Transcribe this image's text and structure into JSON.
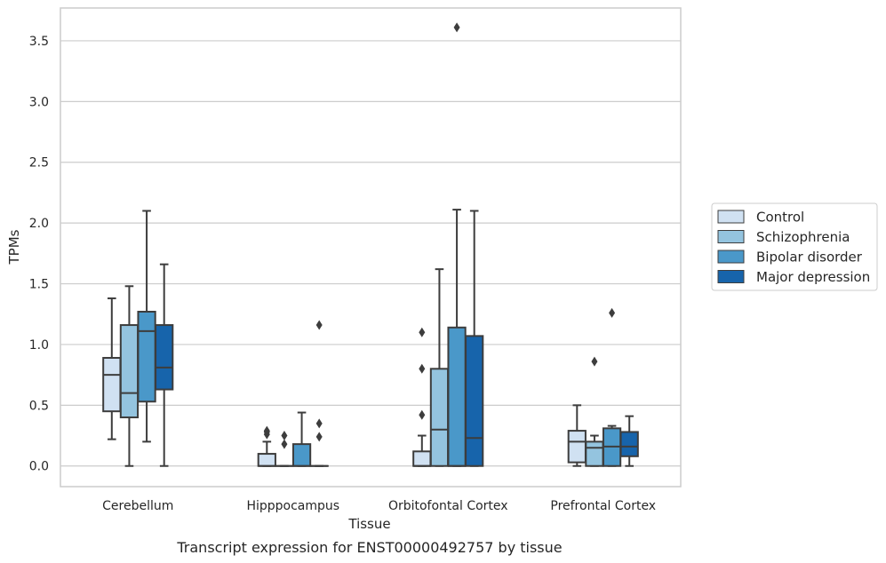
{
  "chart_data": {
    "type": "box",
    "xlabel": "Tissue",
    "ylabel": "TPMs",
    "caption": "Transcript expression for ENST00000492757 by tissue",
    "ylim": [
      -0.17,
      3.77
    ],
    "yticks": [
      "0.0",
      "0.5",
      "1.0",
      "1.5",
      "2.0",
      "2.5",
      "3.0",
      "3.5"
    ],
    "ytick_values": [
      0.0,
      0.5,
      1.0,
      1.5,
      2.0,
      2.5,
      3.0,
      3.5
    ],
    "grid": true,
    "legend_position": "right",
    "categories": [
      "Cerebellum",
      "Hipppocampus",
      "Orbitofontal Cortex",
      "Prefrontal Cortex"
    ],
    "series": [
      {
        "name": "Control",
        "color": "#d0e1f2",
        "boxes": [
          {
            "whislo": 0.22,
            "q1": 0.45,
            "med": 0.75,
            "q3": 0.89,
            "whishi": 1.38,
            "fliers": []
          },
          {
            "whislo": 0.0,
            "q1": 0.0,
            "med": 0.0,
            "q3": 0.1,
            "whishi": 0.2,
            "fliers": [
              0.26,
              0.28,
              0.29
            ]
          },
          {
            "whislo": 0.0,
            "q1": 0.0,
            "med": 0.0,
            "q3": 0.12,
            "whishi": 0.25,
            "fliers": [
              0.42,
              0.8,
              1.1
            ]
          },
          {
            "whislo": 0.0,
            "q1": 0.03,
            "med": 0.2,
            "q3": 0.29,
            "whishi": 0.5,
            "fliers": []
          }
        ]
      },
      {
        "name": "Schizophrenia",
        "color": "#94c4df",
        "boxes": [
          {
            "whislo": 0.0,
            "q1": 0.4,
            "med": 0.6,
            "q3": 1.16,
            "whishi": 1.48,
            "fliers": []
          },
          {
            "whislo": 0.0,
            "q1": 0.0,
            "med": 0.0,
            "q3": 0.0,
            "whishi": 0.0,
            "fliers": [
              0.18,
              0.25
            ]
          },
          {
            "whislo": 0.0,
            "q1": 0.0,
            "med": 0.3,
            "q3": 0.8,
            "whishi": 1.62,
            "fliers": []
          },
          {
            "whislo": 0.0,
            "q1": 0.0,
            "med": 0.15,
            "q3": 0.2,
            "whishi": 0.25,
            "fliers": [
              0.86
            ]
          }
        ]
      },
      {
        "name": "Bipolar disorder",
        "color": "#4a98c9",
        "boxes": [
          {
            "whislo": 0.2,
            "q1": 0.53,
            "med": 1.11,
            "q3": 1.27,
            "whishi": 2.1,
            "fliers": []
          },
          {
            "whislo": 0.0,
            "q1": 0.0,
            "med": 0.0,
            "q3": 0.18,
            "whishi": 0.44,
            "fliers": []
          },
          {
            "whislo": 0.0,
            "q1": 0.0,
            "med": 0.0,
            "q3": 1.14,
            "whishi": 2.11,
            "fliers": [
              3.61
            ]
          },
          {
            "whislo": 0.0,
            "q1": 0.0,
            "med": 0.16,
            "q3": 0.31,
            "whishi": 0.33,
            "fliers": [
              1.26
            ]
          }
        ]
      },
      {
        "name": "Major depression",
        "color": "#1764ab",
        "boxes": [
          {
            "whislo": 0.0,
            "q1": 0.63,
            "med": 0.81,
            "q3": 1.16,
            "whishi": 1.66,
            "fliers": []
          },
          {
            "whislo": 0.0,
            "q1": 0.0,
            "med": 0.0,
            "q3": 0.0,
            "whishi": 0.0,
            "fliers": [
              0.24,
              0.35,
              1.16
            ]
          },
          {
            "whislo": 0.0,
            "q1": 0.0,
            "med": 0.23,
            "q3": 1.07,
            "whishi": 2.1,
            "fliers": []
          },
          {
            "whislo": 0.0,
            "q1": 0.08,
            "med": 0.16,
            "q3": 0.28,
            "whishi": 0.41,
            "fliers": []
          }
        ]
      }
    ]
  }
}
